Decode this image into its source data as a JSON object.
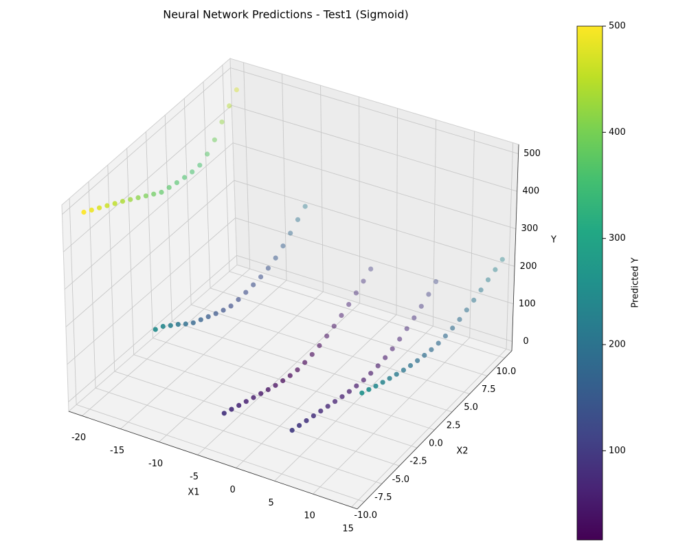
{
  "chart_data": {
    "type": "scatter3d",
    "title": "Neural Network Predictions - Test1 (Sigmoid)",
    "xlabel": "X1",
    "ylabel": "X2",
    "zlabel": "Y",
    "colorbar_label": "Predicted Y",
    "colormap": "viridis",
    "xlim": [
      -21.75,
      15.75
    ],
    "ylim": [
      -11,
      11
    ],
    "zlim": [
      -25,
      525
    ],
    "clim": [
      16,
      500
    ],
    "xticks": [
      -20,
      -15,
      -10,
      -5,
      0,
      5,
      10,
      15
    ],
    "yticks": [
      {
        "value": -10,
        "label": "-10.0"
      },
      {
        "value": -7.5,
        "label": "-7.5"
      },
      {
        "value": -5,
        "label": "-5.0"
      },
      {
        "value": -2.5,
        "label": "-2.5"
      },
      {
        "value": 0,
        "label": "0.0"
      },
      {
        "value": 2.5,
        "label": "2.5"
      },
      {
        "value": 5,
        "label": "5.0"
      },
      {
        "value": 7.5,
        "label": "7.5"
      },
      {
        "value": 10,
        "label": "10.0"
      }
    ],
    "zticks": [
      0,
      100,
      200,
      300,
      400,
      500
    ],
    "cticks": [
      100,
      200,
      300,
      400,
      500
    ],
    "grid": true,
    "x": [
      -20,
      -20,
      -20,
      -20,
      -20,
      -20,
      -20,
      -20,
      -20,
      -20,
      -20,
      -20,
      -20,
      -20,
      -20,
      -20,
      -20,
      -20,
      -20,
      -20,
      -20,
      -11.25,
      -11.25,
      -11.25,
      -11.25,
      -11.25,
      -11.25,
      -11.25,
      -11.25,
      -11.25,
      -11.25,
      -11.25,
      -11.25,
      -11.25,
      -11.25,
      -11.25,
      -11.25,
      -11.25,
      -11.25,
      -11.25,
      -11.25,
      -11.25,
      -2.5,
      -2.5,
      -2.5,
      -2.5,
      -2.5,
      -2.5,
      -2.5,
      -2.5,
      -2.5,
      -2.5,
      -2.5,
      -2.5,
      -2.5,
      -2.5,
      -2.5,
      -2.5,
      -2.5,
      -2.5,
      -2.5,
      -2.5,
      -2.5,
      6.25,
      6.25,
      6.25,
      6.25,
      6.25,
      6.25,
      6.25,
      6.25,
      6.25,
      6.25,
      6.25,
      6.25,
      6.25,
      6.25,
      6.25,
      6.25,
      6.25,
      6.25,
      6.25,
      6.25,
      6.25,
      15,
      15,
      15,
      15,
      15,
      15,
      15,
      15,
      15,
      15,
      15,
      15,
      15,
      15,
      15,
      15,
      15,
      15,
      15,
      15,
      15
    ],
    "y": [
      -10,
      -9,
      -8,
      -7,
      -6,
      -5,
      -4,
      -3,
      -2,
      -1,
      0,
      1,
      2,
      3,
      4,
      5,
      6,
      7,
      8,
      9,
      10,
      -10,
      -9,
      -8,
      -7,
      -6,
      -5,
      -4,
      -3,
      -2,
      -1,
      0,
      1,
      2,
      3,
      4,
      5,
      6,
      7,
      8,
      9,
      10,
      -10,
      -9,
      -8,
      -7,
      -6,
      -5,
      -4,
      -3,
      -2,
      -1,
      0,
      1,
      2,
      3,
      4,
      5,
      6,
      7,
      8,
      9,
      10,
      -10,
      -9,
      -8,
      -7,
      -6,
      -5,
      -4,
      -3,
      -2,
      -1,
      0,
      1,
      2,
      3,
      4,
      5,
      6,
      7,
      8,
      9,
      10,
      -10,
      -9,
      -8,
      -7,
      -6,
      -5,
      -4,
      -3,
      -2,
      -1,
      0,
      1,
      2,
      3,
      4,
      5,
      6,
      7,
      8,
      9,
      10
    ],
    "z": [
      500,
      488,
      476,
      464,
      452,
      440,
      427,
      414,
      401,
      388,
      375,
      370,
      365,
      361,
      358,
      358,
      370,
      390,
      420,
      445,
      470,
      248,
      238,
      222,
      207,
      190,
      175,
      165,
      155,
      145,
      136,
      129,
      128,
      129,
      131,
      134,
      139,
      148,
      162,
      178,
      196,
      213,
      85,
      77,
      69,
      61,
      53,
      45,
      37,
      30,
      24,
      19,
      16,
      17,
      20,
      25,
      32,
      40,
      50,
      61,
      73,
      86,
      100,
      100,
      94,
      88,
      82,
      76,
      70,
      64,
      58,
      53,
      49,
      46,
      45,
      46,
      49,
      54,
      61,
      70,
      80,
      92,
      105,
      120,
      260,
      250,
      240,
      231,
      222,
      214,
      206,
      199,
      193,
      188,
      184,
      182,
      182,
      184,
      188,
      194,
      201,
      209,
      217,
      225,
      233
    ]
  }
}
